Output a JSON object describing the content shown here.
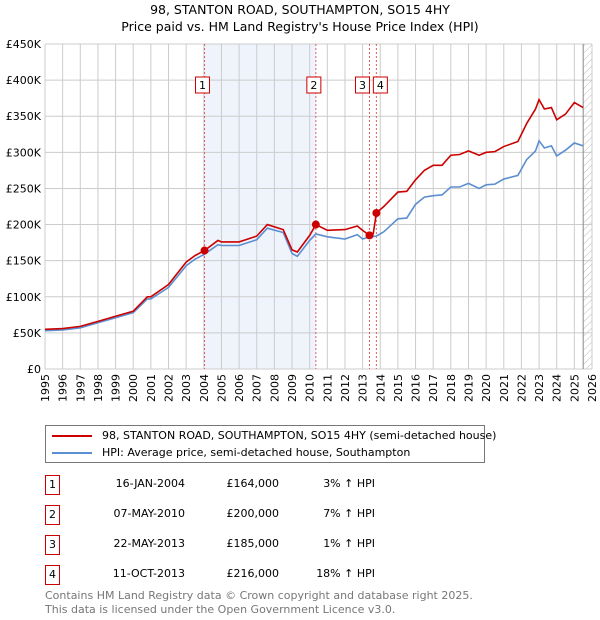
{
  "chart_data": {
    "type": "line",
    "title": "98, STANTON ROAD, SOUTHAMPTON, SO15 4HY",
    "subtitle": "Price paid vs. HM Land Registry's House Price Index (HPI)",
    "xlim": [
      1995,
      2026
    ],
    "ylim": [
      0,
      450000
    ],
    "x_ticks": [
      "1995",
      "1996",
      "1997",
      "1998",
      "1999",
      "2000",
      "2001",
      "2002",
      "2003",
      "2004",
      "2005",
      "2006",
      "2007",
      "2008",
      "2009",
      "2010",
      "2011",
      "2012",
      "2013",
      "2014",
      "2015",
      "2016",
      "2017",
      "2018",
      "2019",
      "2020",
      "2021",
      "2022",
      "2023",
      "2024",
      "2025",
      "2026"
    ],
    "y_ticks": [
      "£0",
      "£50K",
      "£100K",
      "£150K",
      "£200K",
      "£250K",
      "£300K",
      "£350K",
      "£400K",
      "£450K"
    ],
    "grid": true,
    "shaded_range": [
      2004.04,
      2010.35
    ],
    "hatched_from": 2025.5,
    "series": [
      {
        "name": "98, STANTON ROAD, SOUTHAMPTON, SO15 4HY (semi-detached house)",
        "color": "#cc0000",
        "points": [
          [
            1995,
            55
          ],
          [
            1996,
            56
          ],
          [
            1997,
            59
          ],
          [
            1998,
            66
          ],
          [
            1999,
            73
          ],
          [
            2000,
            80
          ],
          [
            2000.8,
            100
          ],
          [
            2001,
            100
          ],
          [
            2002,
            117
          ],
          [
            2003,
            148
          ],
          [
            2003.5,
            157
          ],
          [
            2004.04,
            164
          ],
          [
            2004.8,
            178
          ],
          [
            2005,
            176
          ],
          [
            2006,
            176
          ],
          [
            2007,
            184
          ],
          [
            2007.6,
            200
          ],
          [
            2008.5,
            193
          ],
          [
            2009,
            165
          ],
          [
            2009.3,
            162
          ],
          [
            2010,
            185
          ],
          [
            2010.35,
            200
          ],
          [
            2011,
            192
          ],
          [
            2012,
            193
          ],
          [
            2012.7,
            198
          ],
          [
            2013,
            192
          ],
          [
            2013.39,
            185
          ],
          [
            2013.6,
            187
          ],
          [
            2013.78,
            216
          ],
          [
            2014.2,
            225
          ],
          [
            2015,
            245
          ],
          [
            2015.5,
            246
          ],
          [
            2016,
            262
          ],
          [
            2016.5,
            275
          ],
          [
            2017,
            282
          ],
          [
            2017.5,
            282
          ],
          [
            2018,
            296
          ],
          [
            2018.5,
            297
          ],
          [
            2019,
            302
          ],
          [
            2019.6,
            296
          ],
          [
            2020,
            300
          ],
          [
            2020.5,
            301
          ],
          [
            2021,
            308
          ],
          [
            2021.8,
            315
          ],
          [
            2022.3,
            340
          ],
          [
            2022.8,
            360
          ],
          [
            2023,
            373
          ],
          [
            2023.3,
            360
          ],
          [
            2023.7,
            362
          ],
          [
            2024,
            345
          ],
          [
            2024.5,
            353
          ],
          [
            2025,
            369
          ],
          [
            2025.5,
            362
          ]
        ]
      },
      {
        "name": "HPI: Average price, semi-detached house, Southampton",
        "color": "#5b8fd0",
        "points": [
          [
            1995,
            53
          ],
          [
            1996,
            54
          ],
          [
            1997,
            57
          ],
          [
            1998,
            64
          ],
          [
            1999,
            71
          ],
          [
            2000,
            78
          ],
          [
            2000.8,
            97
          ],
          [
            2001,
            97
          ],
          [
            2002,
            113
          ],
          [
            2003,
            143
          ],
          [
            2003.5,
            152
          ],
          [
            2004.04,
            159
          ],
          [
            2004.8,
            172
          ],
          [
            2005,
            171
          ],
          [
            2006,
            171
          ],
          [
            2007,
            179
          ],
          [
            2007.6,
            195
          ],
          [
            2008.5,
            189
          ],
          [
            2009,
            160
          ],
          [
            2009.3,
            156
          ],
          [
            2010,
            178
          ],
          [
            2010.35,
            187
          ],
          [
            2011,
            183
          ],
          [
            2012,
            180
          ],
          [
            2012.7,
            186
          ],
          [
            2013,
            180
          ],
          [
            2013.39,
            183
          ],
          [
            2013.78,
            184
          ],
          [
            2014.2,
            190
          ],
          [
            2015,
            208
          ],
          [
            2015.5,
            209
          ],
          [
            2016,
            228
          ],
          [
            2016.5,
            238
          ],
          [
            2017,
            240
          ],
          [
            2017.5,
            241
          ],
          [
            2018,
            252
          ],
          [
            2018.5,
            252
          ],
          [
            2019,
            257
          ],
          [
            2019.6,
            250
          ],
          [
            2020,
            255
          ],
          [
            2020.5,
            256
          ],
          [
            2021,
            263
          ],
          [
            2021.8,
            268
          ],
          [
            2022.3,
            290
          ],
          [
            2022.8,
            302
          ],
          [
            2023,
            316
          ],
          [
            2023.3,
            306
          ],
          [
            2023.7,
            309
          ],
          [
            2024,
            295
          ],
          [
            2024.5,
            303
          ],
          [
            2025,
            313
          ],
          [
            2025.5,
            309
          ]
        ]
      }
    ],
    "sales": [
      {
        "label": "1",
        "x": 2004.04,
        "value": 164
      },
      {
        "label": "2",
        "x": 2010.35,
        "value": 200
      },
      {
        "label": "3",
        "x": 2013.39,
        "value": 185
      },
      {
        "label": "4",
        "x": 2013.78,
        "value": 216
      }
    ]
  },
  "legend": {
    "property": "98, STANTON ROAD, SOUTHAMPTON, SO15 4HY (semi-detached house)",
    "hpi": "HPI: Average price, semi-detached house, Southampton"
  },
  "transactions": [
    {
      "num": "1",
      "date": "16-JAN-2004",
      "price": "£164,000",
      "hpi": "3% ↑ HPI"
    },
    {
      "num": "2",
      "date": "07-MAY-2010",
      "price": "£200,000",
      "hpi": "7% ↑ HPI"
    },
    {
      "num": "3",
      "date": "22-MAY-2013",
      "price": "£185,000",
      "hpi": "1% ↑ HPI"
    },
    {
      "num": "4",
      "date": "11-OCT-2013",
      "price": "£216,000",
      "hpi": "18% ↑ HPI"
    }
  ],
  "footer": {
    "line1": "Contains HM Land Registry data © Crown copyright and database right 2025.",
    "line2": "This data is licensed under the Open Government Licence v3.0."
  }
}
